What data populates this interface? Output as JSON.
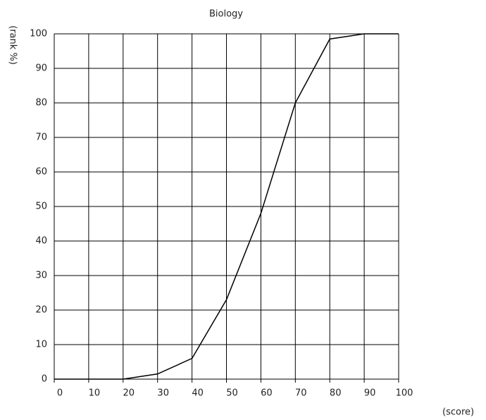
{
  "chart_data": {
    "type": "line",
    "title": "Biology",
    "xlabel": "(score)",
    "ylabel": "(rank %)",
    "x": [
      0,
      10,
      20,
      30,
      40,
      50,
      60,
      70,
      80,
      90,
      100
    ],
    "values": [
      0,
      0,
      0,
      1.5,
      6,
      23,
      48,
      80,
      98.5,
      100,
      100
    ],
    "color": "#000000",
    "xlim": [
      0,
      100
    ],
    "xticks": [
      0,
      10,
      20,
      30,
      40,
      50,
      60,
      70,
      80,
      90,
      100
    ],
    "ylim": [
      0,
      100
    ],
    "yticks": [
      0,
      10,
      20,
      30,
      40,
      50,
      60,
      70,
      80,
      90,
      100
    ],
    "grid": true
  }
}
